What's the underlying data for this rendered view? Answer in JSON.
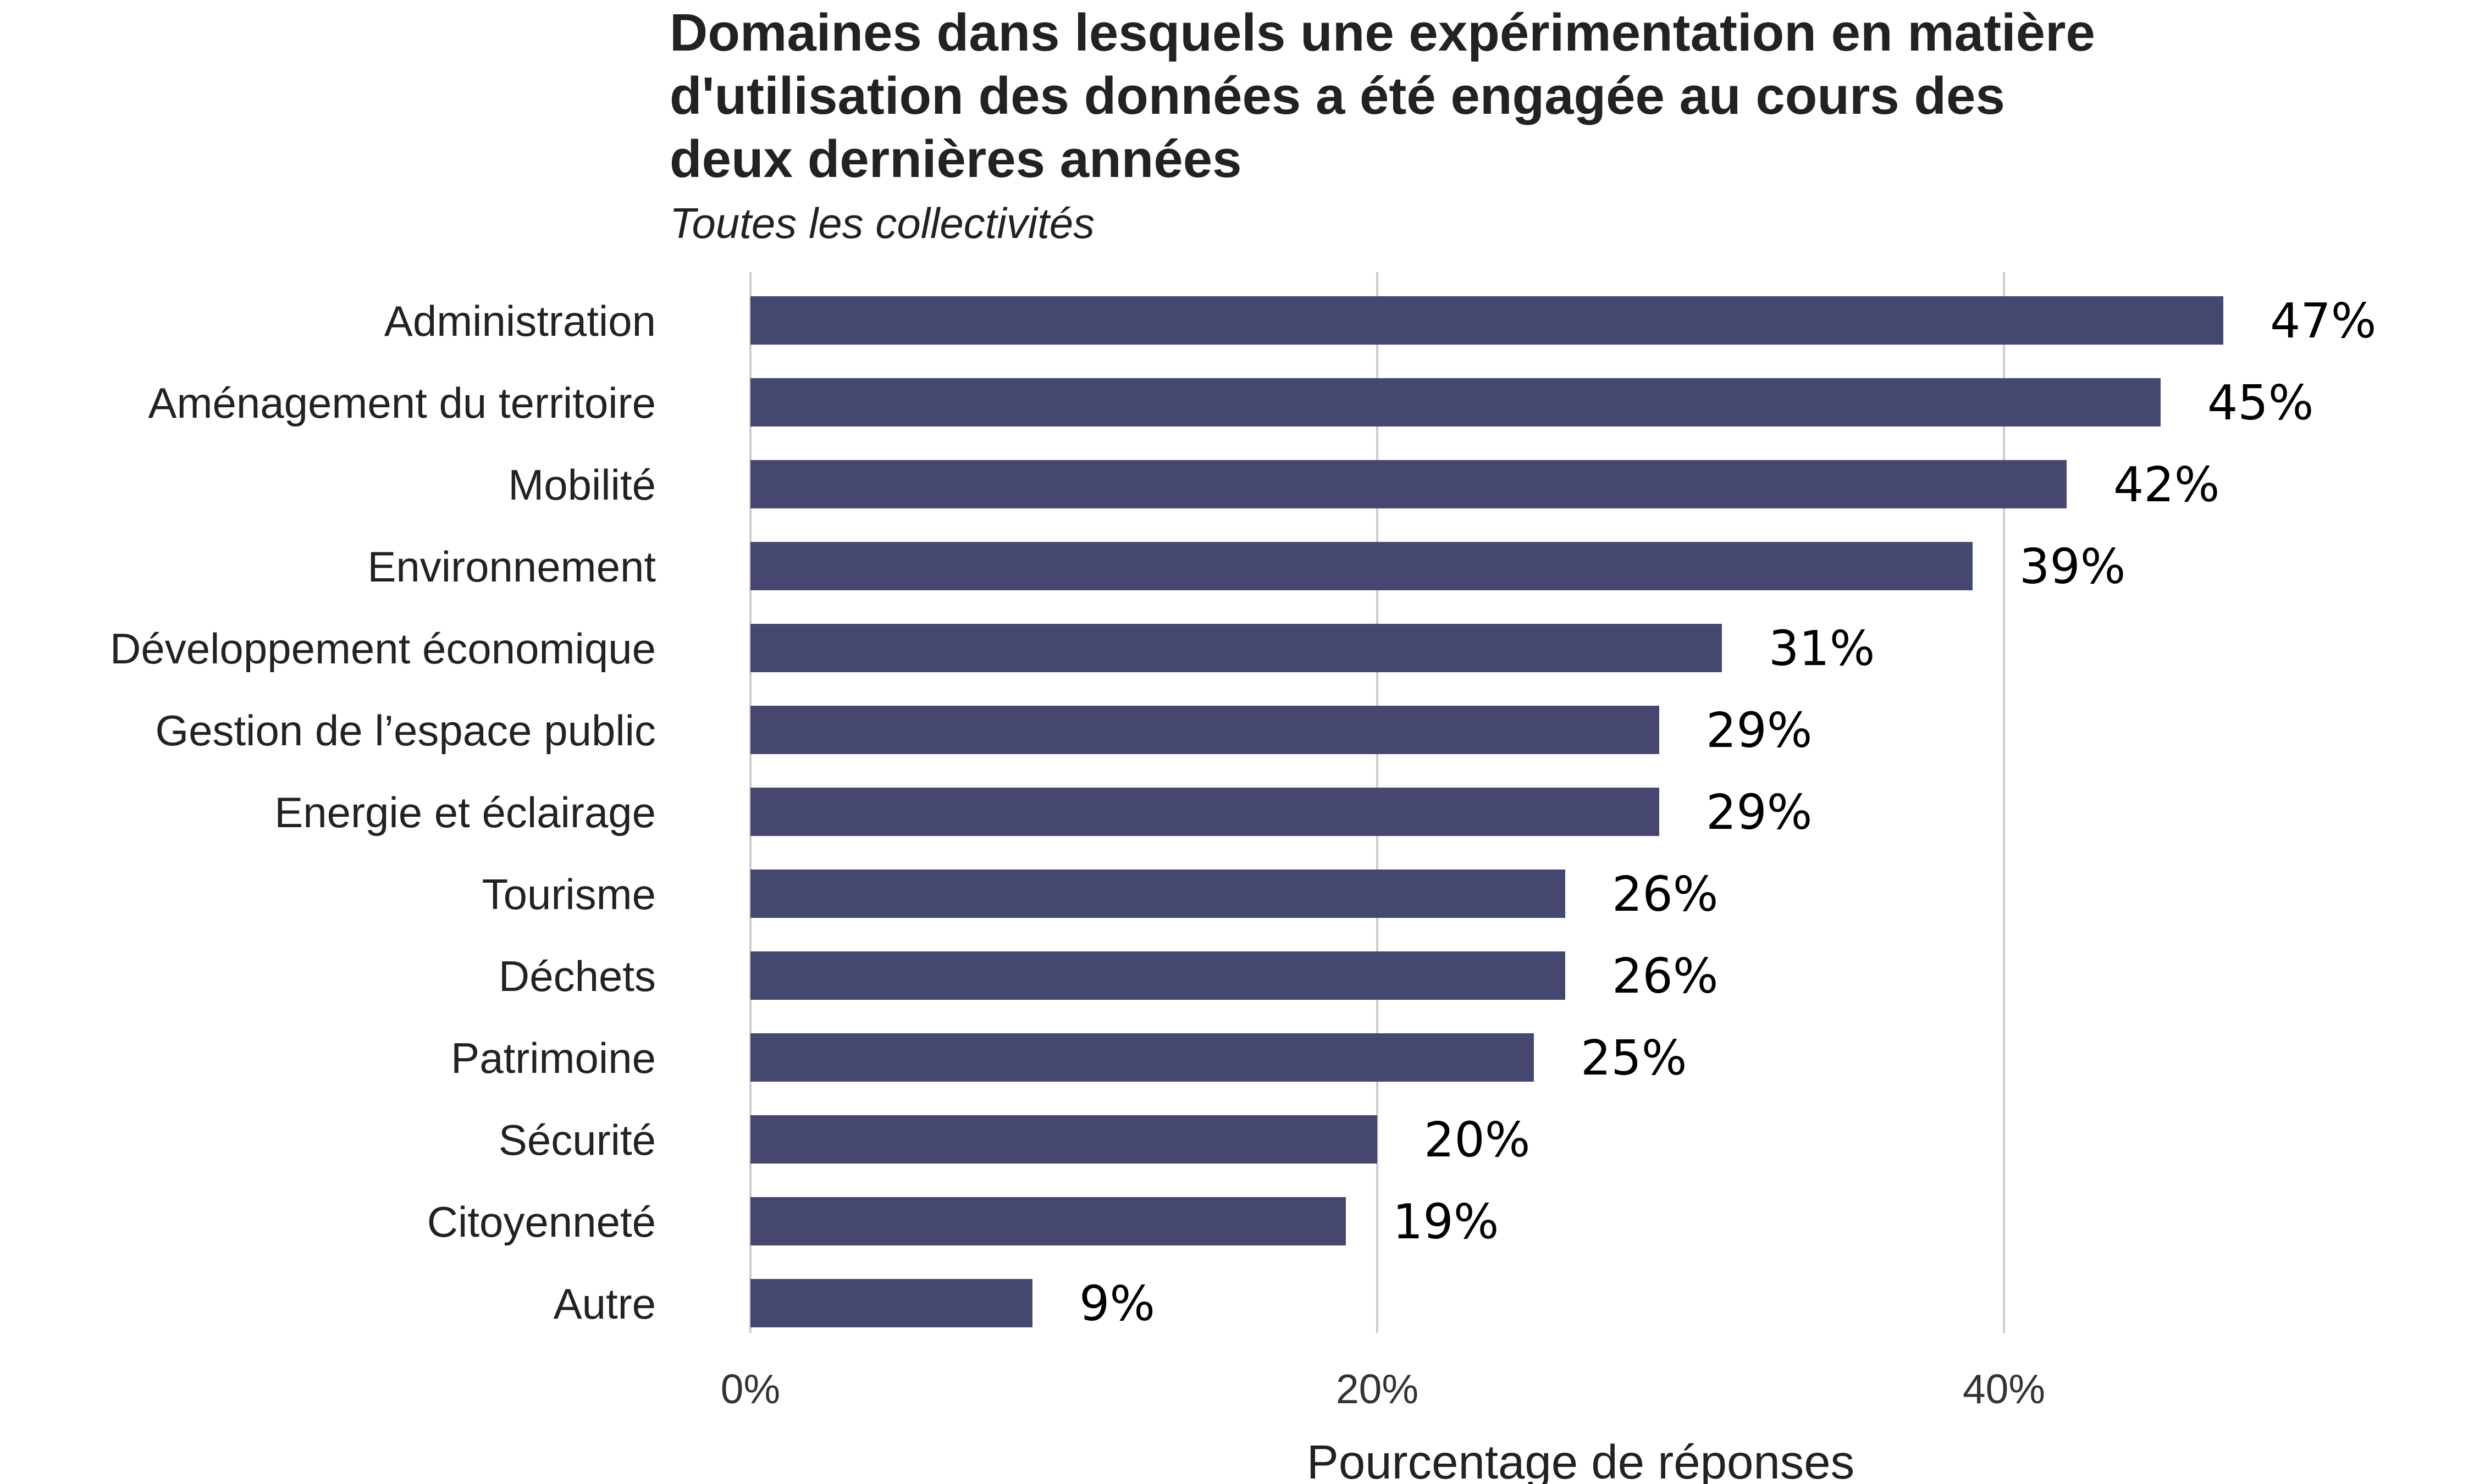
{
  "chart_data": {
    "type": "bar",
    "orientation": "horizontal",
    "title_lines": [
      "Domaines dans lesquels une expérimentation en matière",
      "d'utilisation des données a été engagée au cours des",
      "deux dernières années"
    ],
    "subtitle": "Toutes les collectivités",
    "xlabel": "Pourcentage de réponses",
    "ylabel": "",
    "xlim": [
      0,
      50
    ],
    "xticks": [
      0,
      20,
      40
    ],
    "xtick_labels": [
      "0%",
      "20%",
      "40%"
    ],
    "grid": true,
    "bar_color": "#464770",
    "categories": [
      "Administration",
      "Aménagement du territoire",
      "Mobilité",
      "Environnement",
      "Développement économique",
      "Gestion de l’espace public",
      "Energie et éclairage",
      "Tourisme",
      "Déchets",
      "Patrimoine",
      "Sécurité",
      "Citoyenneté",
      "Autre"
    ],
    "values": [
      47,
      45,
      42,
      39,
      31,
      29,
      29,
      26,
      26,
      25,
      20,
      19,
      9
    ],
    "value_labels": [
      "47%",
      "45%",
      "42%",
      "39%",
      "31%",
      "29%",
      "29%",
      "26%",
      "26%",
      "25%",
      "20%",
      "19%",
      "9%"
    ]
  }
}
